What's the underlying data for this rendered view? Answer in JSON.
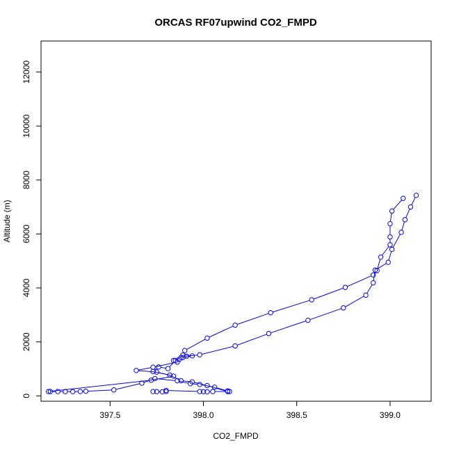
{
  "chart_data": {
    "type": "line",
    "title": "ORCAS RF07upwind CO2_FMPD",
    "xlabel": "CO2_FMPD",
    "ylabel": "Altitude (m)",
    "xlim": [
      397.13,
      399.22
    ],
    "ylim": [
      -200,
      13150
    ],
    "xticks": [
      397.5,
      398.0,
      398.5,
      399.0
    ],
    "xtick_labels": [
      "397.5",
      "398.0",
      "398.5",
      "399.0"
    ],
    "yticks": [
      0,
      2000,
      4000,
      6000,
      8000,
      10000,
      12000
    ],
    "ytick_labels": [
      "0",
      "2000",
      "4000",
      "6000",
      "8000",
      "10000",
      "12000"
    ],
    "grid": false,
    "legend": "none",
    "marker": "open-circle",
    "line_style": "solid",
    "color": "#0000ff",
    "series": [
      {
        "points": [
          [
            398.14,
            160
          ],
          [
            398.13,
            180
          ],
          [
            398.06,
            320
          ],
          [
            397.98,
            420
          ],
          [
            397.93,
            450
          ],
          [
            397.86,
            560
          ],
          [
            397.74,
            640
          ],
          [
            397.67,
            470
          ],
          [
            397.52,
            220
          ],
          [
            397.37,
            170
          ],
          [
            397.34,
            160
          ],
          [
            397.3,
            155
          ],
          [
            397.26,
            158
          ],
          [
            397.22,
            160
          ],
          [
            397.18,
            160
          ],
          [
            397.17,
            160
          ],
          [
            397.72,
            580
          ],
          [
            397.84,
            730
          ],
          [
            397.75,
            880
          ],
          [
            397.64,
            940
          ],
          [
            397.73,
            1060
          ],
          [
            397.86,
            1250
          ],
          [
            397.84,
            1310
          ],
          [
            397.88,
            1420
          ],
          [
            397.91,
            1470
          ],
          [
            397.98,
            1520
          ],
          [
            398.17,
            1850
          ],
          [
            398.35,
            2310
          ],
          [
            398.56,
            2800
          ],
          [
            398.75,
            3260
          ],
          [
            398.87,
            3730
          ],
          [
            398.91,
            4190
          ],
          [
            398.92,
            4660
          ],
          [
            398.99,
            4950
          ],
          [
            399.01,
            5430
          ],
          [
            399.06,
            6060
          ],
          [
            399.08,
            6530
          ],
          [
            399.11,
            7000
          ],
          [
            399.14,
            7430
          ]
        ]
      },
      {
        "points": [
          [
            399.07,
            7320
          ],
          [
            399.01,
            6850
          ],
          [
            399.0,
            6380
          ],
          [
            399.0,
            5890
          ],
          [
            399.0,
            5600
          ],
          [
            398.95,
            5140
          ],
          [
            398.93,
            4640
          ],
          [
            398.91,
            4480
          ],
          [
            398.76,
            4020
          ],
          [
            398.58,
            3560
          ],
          [
            398.36,
            3080
          ],
          [
            398.17,
            2620
          ],
          [
            398.02,
            2140
          ],
          [
            397.9,
            1680
          ],
          [
            397.89,
            1510
          ],
          [
            397.94,
            1480
          ],
          [
            397.89,
            1420
          ],
          [
            397.87,
            1350
          ],
          [
            397.85,
            1310
          ],
          [
            397.81,
            1010
          ],
          [
            397.76,
            1070
          ],
          [
            397.73,
            900
          ],
          [
            397.82,
            770
          ],
          [
            397.88,
            560
          ],
          [
            397.94,
            520
          ],
          [
            398.02,
            380
          ],
          [
            398.13,
            160
          ],
          [
            398.05,
            160
          ],
          [
            398.02,
            150
          ],
          [
            398.0,
            155
          ],
          [
            397.98,
            160
          ],
          [
            397.8,
            200
          ],
          [
            397.8,
            160
          ],
          [
            397.78,
            150
          ],
          [
            397.75,
            155
          ],
          [
            397.73,
            160
          ]
        ]
      }
    ]
  }
}
